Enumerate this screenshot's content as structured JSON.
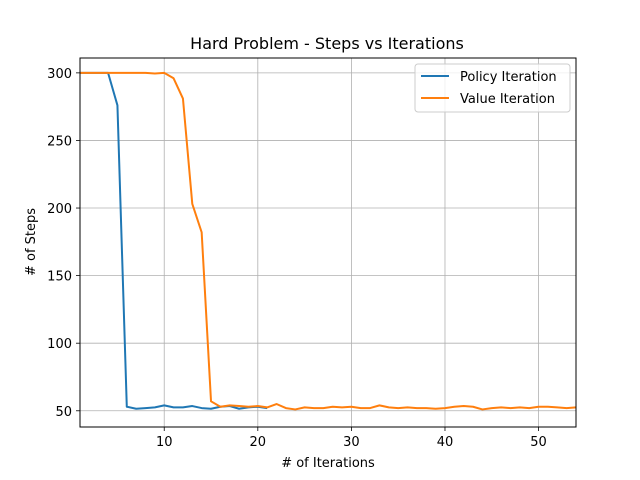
{
  "chart_data": {
    "type": "line",
    "title": "Hard Problem - Steps vs Iterations",
    "xlabel": "# of Iterations",
    "ylabel": "# of Steps",
    "xlim": [
      1,
      54
    ],
    "ylim": [
      38,
      311
    ],
    "xticks": [
      10,
      20,
      30,
      40,
      50
    ],
    "yticks": [
      50,
      100,
      150,
      200,
      250,
      300
    ],
    "grid": true,
    "legend": "top-right",
    "series": [
      {
        "name": "Policy Iteration",
        "color": "#1f77b4",
        "points": [
          [
            1,
            300
          ],
          [
            2,
            300
          ],
          [
            3,
            300
          ],
          [
            4,
            300
          ],
          [
            5,
            276
          ],
          [
            6,
            53
          ],
          [
            7,
            51.5
          ],
          [
            8,
            52
          ],
          [
            9,
            52.5
          ],
          [
            10,
            54
          ],
          [
            11,
            52.5
          ],
          [
            12,
            52.5
          ],
          [
            13,
            53.5
          ],
          [
            14,
            52
          ],
          [
            15,
            51.5
          ],
          [
            16,
            53
          ],
          [
            17,
            53.5
          ],
          [
            18,
            51.5
          ],
          [
            19,
            52.5
          ],
          [
            20,
            53
          ],
          [
            21,
            52
          ]
        ]
      },
      {
        "name": "Value Iteration",
        "color": "#ff7f0e",
        "points": [
          [
            1,
            300
          ],
          [
            2,
            300
          ],
          [
            3,
            300
          ],
          [
            4,
            300
          ],
          [
            5,
            300
          ],
          [
            6,
            300
          ],
          [
            7,
            300
          ],
          [
            8,
            300
          ],
          [
            9,
            299.5
          ],
          [
            10,
            300
          ],
          [
            11,
            296
          ],
          [
            12,
            281
          ],
          [
            13,
            203
          ],
          [
            14,
            182
          ],
          [
            15,
            57
          ],
          [
            16,
            53
          ],
          [
            17,
            54
          ],
          [
            18,
            53.5
          ],
          [
            19,
            53
          ],
          [
            20,
            53.5
          ],
          [
            21,
            52.5
          ],
          [
            22,
            55
          ],
          [
            23,
            52
          ],
          [
            24,
            51
          ],
          [
            25,
            52.5
          ],
          [
            26,
            52
          ],
          [
            27,
            52
          ],
          [
            28,
            53
          ],
          [
            29,
            52.5
          ],
          [
            30,
            53
          ],
          [
            31,
            52
          ],
          [
            32,
            52
          ],
          [
            33,
            54
          ],
          [
            34,
            52.5
          ],
          [
            35,
            52
          ],
          [
            36,
            52.5
          ],
          [
            37,
            52
          ],
          [
            38,
            52
          ],
          [
            39,
            51.5
          ],
          [
            40,
            52
          ],
          [
            41,
            53
          ],
          [
            42,
            53.5
          ],
          [
            43,
            53
          ],
          [
            44,
            51
          ],
          [
            45,
            52
          ],
          [
            46,
            52.5
          ],
          [
            47,
            52
          ],
          [
            48,
            52.5
          ],
          [
            49,
            52
          ],
          [
            50,
            53
          ],
          [
            51,
            53
          ],
          [
            52,
            52.5
          ],
          [
            53,
            52
          ],
          [
            54,
            52.5
          ]
        ]
      }
    ]
  }
}
